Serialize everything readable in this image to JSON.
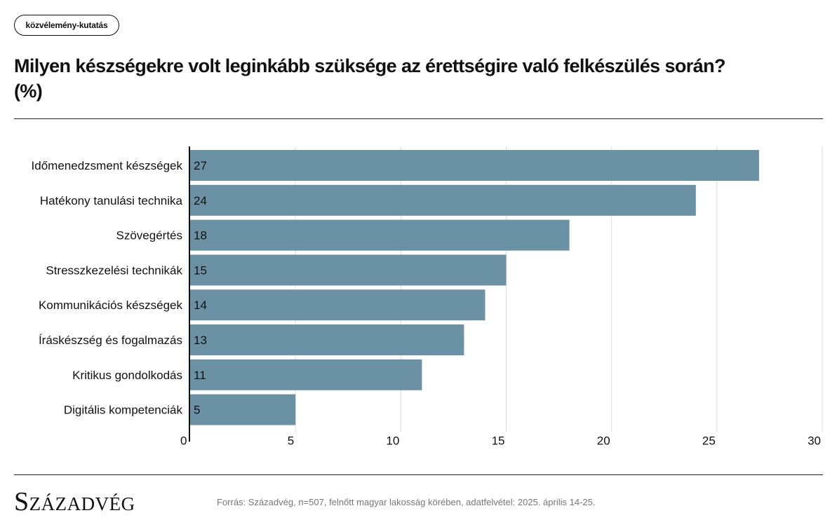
{
  "tag": "közvélemény-kutatás",
  "title_line1": "Milyen készségekre volt leginkább szüksége az érettségire való felkészülés során?",
  "title_line2": "(%)",
  "logo": "Századvég",
  "source": "Forrás: Századvég, n=507, felnőtt magyar lakosság körében, adatfelvétel: 2025. április 14-25.",
  "colors": {
    "bar": "#6b91a5",
    "grid": "#dddddd",
    "axis": "#111111"
  },
  "chart_data": {
    "type": "bar",
    "orientation": "horizontal",
    "categories": [
      "Időmenedzsment készségek",
      "Hatékony tanulási technika",
      "Szövegértés",
      "Stresszkezelési technikák",
      "Kommunikációs készségek",
      "Íráskészség és fogalmazás",
      "Kritikus gondolkodás",
      "Digitális kompetenciák"
    ],
    "values": [
      27,
      24,
      18,
      15,
      14,
      13,
      11,
      5
    ],
    "xlim": [
      0,
      30
    ],
    "xticks": [
      "0",
      "5",
      "10",
      "15",
      "20",
      "25",
      "30"
    ],
    "grid": true,
    "data_labels": true
  }
}
